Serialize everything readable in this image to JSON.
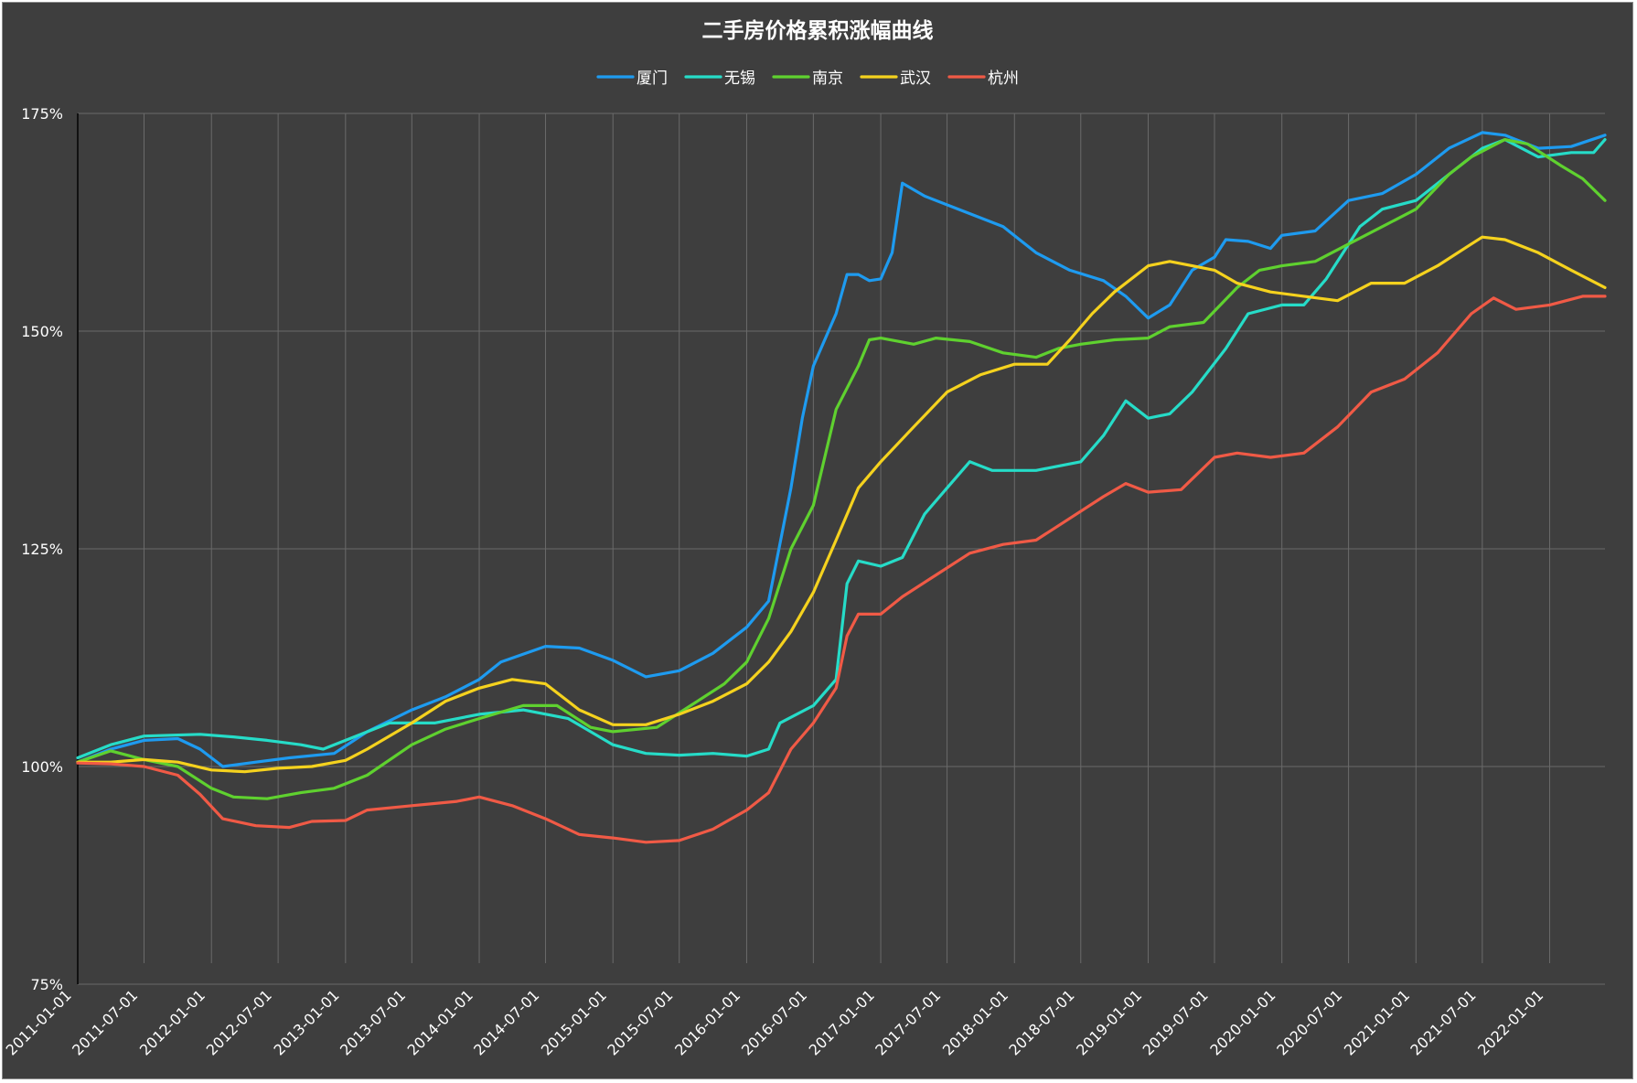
{
  "chart_data": {
    "type": "line",
    "title": "二手房价格累积涨幅曲线",
    "xlabel": "",
    "ylabel": "",
    "ylim": [
      75,
      175
    ],
    "y_ticks": [
      75,
      100,
      125,
      150,
      175
    ],
    "y_tick_suffix": "%",
    "x_range": [
      "2011-01-01",
      "2022-06-01"
    ],
    "x_ticks": [
      "2011-01-01",
      "2011-07-01",
      "2012-01-01",
      "2012-07-01",
      "2013-01-01",
      "2013-07-01",
      "2014-01-01",
      "2014-07-01",
      "2015-01-01",
      "2015-07-01",
      "2016-01-01",
      "2016-07-01",
      "2017-01-01",
      "2017-07-01",
      "2018-01-01",
      "2018-07-01",
      "2019-01-01",
      "2019-07-01",
      "2020-01-01",
      "2020-07-01",
      "2021-01-01",
      "2021-07-01",
      "2022-01-01"
    ],
    "grid": true,
    "legend_position": "top",
    "series": [
      {
        "name": "厦门",
        "color": "#1e9bf0",
        "points": [
          [
            "2011-01-01",
            100.5
          ],
          [
            "2011-04-01",
            102
          ],
          [
            "2011-07-01",
            103
          ],
          [
            "2011-10-01",
            103.2
          ],
          [
            "2011-12-01",
            102
          ],
          [
            "2012-02-01",
            100
          ],
          [
            "2012-05-01",
            100.5
          ],
          [
            "2012-08-01",
            101
          ],
          [
            "2012-12-01",
            101.5
          ],
          [
            "2013-03-01",
            104
          ],
          [
            "2013-07-01",
            106.5
          ],
          [
            "2013-10-01",
            108
          ],
          [
            "2014-01-01",
            110
          ],
          [
            "2014-03-01",
            112
          ],
          [
            "2014-07-01",
            113.8
          ],
          [
            "2014-10-01",
            113.6
          ],
          [
            "2015-01-01",
            112.2
          ],
          [
            "2015-04-01",
            110.3
          ],
          [
            "2015-07-01",
            111
          ],
          [
            "2015-10-01",
            113
          ],
          [
            "2016-01-01",
            116
          ],
          [
            "2016-03-01",
            119
          ],
          [
            "2016-05-01",
            132
          ],
          [
            "2016-06-01",
            140
          ],
          [
            "2016-07-01",
            146
          ],
          [
            "2016-09-01",
            152
          ],
          [
            "2016-10-01",
            156.5
          ],
          [
            "2016-11-01",
            156.5
          ],
          [
            "2016-12-01",
            155.8
          ],
          [
            "2017-01-01",
            156
          ],
          [
            "2017-02-01",
            159
          ],
          [
            "2017-03-01",
            167
          ],
          [
            "2017-05-01",
            165.5
          ],
          [
            "2017-08-01",
            164
          ],
          [
            "2017-12-01",
            162
          ],
          [
            "2018-03-01",
            159
          ],
          [
            "2018-06-01",
            157
          ],
          [
            "2018-09-01",
            155.8
          ],
          [
            "2018-11-01",
            154
          ],
          [
            "2019-01-01",
            151.5
          ],
          [
            "2019-03-01",
            153
          ],
          [
            "2019-05-01",
            157
          ],
          [
            "2019-07-01",
            158.5
          ],
          [
            "2019-08-01",
            160.5
          ],
          [
            "2019-10-01",
            160.3
          ],
          [
            "2019-12-01",
            159.5
          ],
          [
            "2020-01-01",
            161
          ],
          [
            "2020-04-01",
            161.5
          ],
          [
            "2020-07-01",
            165
          ],
          [
            "2020-10-01",
            165.8
          ],
          [
            "2021-01-01",
            168
          ],
          [
            "2021-04-01",
            171
          ],
          [
            "2021-07-01",
            172.8
          ],
          [
            "2021-09-01",
            172.5
          ],
          [
            "2021-12-01",
            171
          ],
          [
            "2022-03-01",
            171.2
          ],
          [
            "2022-06-01",
            172.5
          ]
        ]
      },
      {
        "name": "无锡",
        "color": "#26dcc8",
        "points": [
          [
            "2011-01-01",
            101
          ],
          [
            "2011-04-01",
            102.5
          ],
          [
            "2011-07-01",
            103.5
          ],
          [
            "2011-12-01",
            103.7
          ],
          [
            "2012-03-01",
            103.4
          ],
          [
            "2012-06-01",
            103
          ],
          [
            "2012-09-01",
            102.5
          ],
          [
            "2012-11-01",
            102
          ],
          [
            "2013-01-01",
            103
          ],
          [
            "2013-05-01",
            105
          ],
          [
            "2013-09-01",
            105
          ],
          [
            "2014-01-01",
            106
          ],
          [
            "2014-05-01",
            106.5
          ],
          [
            "2014-09-01",
            105.5
          ],
          [
            "2015-01-01",
            102.5
          ],
          [
            "2015-04-01",
            101.5
          ],
          [
            "2015-07-01",
            101.3
          ],
          [
            "2015-10-01",
            101.5
          ],
          [
            "2016-01-01",
            101.2
          ],
          [
            "2016-03-01",
            102
          ],
          [
            "2016-04-01",
            105
          ],
          [
            "2016-07-01",
            107
          ],
          [
            "2016-09-01",
            110
          ],
          [
            "2016-10-01",
            121
          ],
          [
            "2016-11-01",
            123.6
          ],
          [
            "2017-01-01",
            123
          ],
          [
            "2017-03-01",
            124
          ],
          [
            "2017-05-01",
            129
          ],
          [
            "2017-07-01",
            132
          ],
          [
            "2017-09-01",
            135
          ],
          [
            "2017-11-01",
            134
          ],
          [
            "2018-03-01",
            134
          ],
          [
            "2018-07-01",
            135
          ],
          [
            "2018-09-01",
            138
          ],
          [
            "2018-11-01",
            142
          ],
          [
            "2019-01-01",
            140
          ],
          [
            "2019-03-01",
            140.5
          ],
          [
            "2019-05-01",
            143
          ],
          [
            "2019-08-01",
            148
          ],
          [
            "2019-10-01",
            152
          ],
          [
            "2020-01-01",
            153
          ],
          [
            "2020-03-01",
            153
          ],
          [
            "2020-05-01",
            156
          ],
          [
            "2020-08-01",
            162
          ],
          [
            "2020-10-01",
            164
          ],
          [
            "2021-01-01",
            165
          ],
          [
            "2021-04-01",
            168
          ],
          [
            "2021-07-01",
            171
          ],
          [
            "2021-09-01",
            172
          ],
          [
            "2021-12-01",
            170
          ],
          [
            "2022-03-01",
            170.5
          ],
          [
            "2022-05-01",
            170.5
          ],
          [
            "2022-06-01",
            172
          ]
        ]
      },
      {
        "name": "南京",
        "color": "#5fd12f",
        "points": [
          [
            "2011-01-01",
            100.5
          ],
          [
            "2011-04-01",
            101.8
          ],
          [
            "2011-07-01",
            100.8
          ],
          [
            "2011-10-01",
            100
          ],
          [
            "2012-01-01",
            97.5
          ],
          [
            "2012-03-01",
            96.5
          ],
          [
            "2012-06-01",
            96.3
          ],
          [
            "2012-09-01",
            97
          ],
          [
            "2012-12-01",
            97.5
          ],
          [
            "2013-03-01",
            99
          ],
          [
            "2013-07-01",
            102.5
          ],
          [
            "2013-10-01",
            104.3
          ],
          [
            "2014-01-01",
            105.5
          ],
          [
            "2014-05-01",
            107
          ],
          [
            "2014-08-01",
            107
          ],
          [
            "2014-11-01",
            104.5
          ],
          [
            "2015-01-01",
            104
          ],
          [
            "2015-05-01",
            104.5
          ],
          [
            "2015-08-01",
            107
          ],
          [
            "2015-11-01",
            109.5
          ],
          [
            "2016-01-01",
            112
          ],
          [
            "2016-03-01",
            117
          ],
          [
            "2016-05-01",
            125
          ],
          [
            "2016-07-01",
            130
          ],
          [
            "2016-09-01",
            141
          ],
          [
            "2016-11-01",
            146
          ],
          [
            "2016-12-01",
            149
          ],
          [
            "2017-01-01",
            149.2
          ],
          [
            "2017-04-01",
            148.5
          ],
          [
            "2017-06-01",
            149.2
          ],
          [
            "2017-09-01",
            148.8
          ],
          [
            "2017-12-01",
            147.5
          ],
          [
            "2018-03-01",
            147
          ],
          [
            "2018-05-01",
            148
          ],
          [
            "2018-07-01",
            148.5
          ],
          [
            "2018-10-01",
            149
          ],
          [
            "2019-01-01",
            149.2
          ],
          [
            "2019-03-01",
            150.5
          ],
          [
            "2019-06-01",
            151
          ],
          [
            "2019-09-01",
            155
          ],
          [
            "2019-11-01",
            157
          ],
          [
            "2020-01-01",
            157.5
          ],
          [
            "2020-04-01",
            158
          ],
          [
            "2020-07-01",
            160
          ],
          [
            "2020-10-01",
            162
          ],
          [
            "2021-01-01",
            164
          ],
          [
            "2021-04-01",
            168
          ],
          [
            "2021-06-01",
            170
          ],
          [
            "2021-09-01",
            172
          ],
          [
            "2021-11-01",
            171.5
          ],
          [
            "2022-02-01",
            169
          ],
          [
            "2022-04-01",
            167.5
          ],
          [
            "2022-06-01",
            165
          ]
        ]
      },
      {
        "name": "武汉",
        "color": "#f5d21e",
        "points": [
          [
            "2011-01-01",
            100.5
          ],
          [
            "2011-04-01",
            100.5
          ],
          [
            "2011-07-01",
            100.8
          ],
          [
            "2011-10-01",
            100.5
          ],
          [
            "2012-01-01",
            99.6
          ],
          [
            "2012-04-01",
            99.4
          ],
          [
            "2012-07-01",
            99.8
          ],
          [
            "2012-10-01",
            100
          ],
          [
            "2013-01-01",
            100.7
          ],
          [
            "2013-03-01",
            102
          ],
          [
            "2013-07-01",
            105
          ],
          [
            "2013-10-01",
            107.5
          ],
          [
            "2014-01-01",
            109
          ],
          [
            "2014-04-01",
            110
          ],
          [
            "2014-07-01",
            109.5
          ],
          [
            "2014-10-01",
            106.5
          ],
          [
            "2015-01-01",
            104.8
          ],
          [
            "2015-04-01",
            104.8
          ],
          [
            "2015-07-01",
            106
          ],
          [
            "2015-10-01",
            107.5
          ],
          [
            "2016-01-01",
            109.5
          ],
          [
            "2016-03-01",
            112
          ],
          [
            "2016-05-01",
            115.5
          ],
          [
            "2016-07-01",
            120
          ],
          [
            "2016-09-01",
            126
          ],
          [
            "2016-11-01",
            132
          ],
          [
            "2017-01-01",
            135
          ],
          [
            "2017-04-01",
            139
          ],
          [
            "2017-07-01",
            143
          ],
          [
            "2017-10-01",
            145
          ],
          [
            "2018-01-01",
            146.2
          ],
          [
            "2018-04-01",
            146.2
          ],
          [
            "2018-06-01",
            149
          ],
          [
            "2018-08-01",
            152
          ],
          [
            "2018-10-01",
            154.5
          ],
          [
            "2019-01-01",
            157.5
          ],
          [
            "2019-03-01",
            158
          ],
          [
            "2019-05-01",
            157.5
          ],
          [
            "2019-07-01",
            157
          ],
          [
            "2019-09-01",
            155.5
          ],
          [
            "2019-12-01",
            154.5
          ],
          [
            "2020-03-01",
            154
          ],
          [
            "2020-06-01",
            153.5
          ],
          [
            "2020-09-01",
            155.5
          ],
          [
            "2020-12-01",
            155.5
          ],
          [
            "2021-03-01",
            157.5
          ],
          [
            "2021-06-01",
            160
          ],
          [
            "2021-07-01",
            160.8
          ],
          [
            "2021-09-01",
            160.5
          ],
          [
            "2021-12-01",
            159
          ],
          [
            "2022-03-01",
            157
          ],
          [
            "2022-06-01",
            155
          ]
        ]
      },
      {
        "name": "杭州",
        "color": "#f05a46",
        "points": [
          [
            "2011-01-01",
            100.4
          ],
          [
            "2011-04-01",
            100.3
          ],
          [
            "2011-07-01",
            100
          ],
          [
            "2011-10-01",
            99
          ],
          [
            "2011-12-01",
            96.8
          ],
          [
            "2012-02-01",
            94
          ],
          [
            "2012-05-01",
            93.2
          ],
          [
            "2012-08-01",
            93
          ],
          [
            "2012-10-01",
            93.7
          ],
          [
            "2013-01-01",
            93.8
          ],
          [
            "2013-03-01",
            95
          ],
          [
            "2013-07-01",
            95.5
          ],
          [
            "2013-11-01",
            96
          ],
          [
            "2014-01-01",
            96.5
          ],
          [
            "2014-04-01",
            95.5
          ],
          [
            "2014-07-01",
            94
          ],
          [
            "2014-10-01",
            92.2
          ],
          [
            "2015-01-01",
            91.8
          ],
          [
            "2015-04-01",
            91.3
          ],
          [
            "2015-07-01",
            91.5
          ],
          [
            "2015-10-01",
            92.8
          ],
          [
            "2016-01-01",
            95
          ],
          [
            "2016-03-01",
            97
          ],
          [
            "2016-05-01",
            102
          ],
          [
            "2016-07-01",
            105
          ],
          [
            "2016-09-01",
            109
          ],
          [
            "2016-10-01",
            115
          ],
          [
            "2016-11-01",
            117.5
          ],
          [
            "2017-01-01",
            117.5
          ],
          [
            "2017-03-01",
            119.5
          ],
          [
            "2017-06-01",
            122
          ],
          [
            "2017-09-01",
            124.5
          ],
          [
            "2017-12-01",
            125.5
          ],
          [
            "2018-03-01",
            126
          ],
          [
            "2018-06-01",
            128.5
          ],
          [
            "2018-09-01",
            131
          ],
          [
            "2018-11-01",
            132.5
          ],
          [
            "2019-01-01",
            131.5
          ],
          [
            "2019-04-01",
            131.8
          ],
          [
            "2019-07-01",
            135.5
          ],
          [
            "2019-09-01",
            136
          ],
          [
            "2019-12-01",
            135.5
          ],
          [
            "2020-03-01",
            136
          ],
          [
            "2020-06-01",
            139
          ],
          [
            "2020-09-01",
            143
          ],
          [
            "2020-12-01",
            144.5
          ],
          [
            "2021-03-01",
            147.5
          ],
          [
            "2021-06-01",
            152
          ],
          [
            "2021-08-01",
            153.8
          ],
          [
            "2021-10-01",
            152.5
          ],
          [
            "2022-01-01",
            153
          ],
          [
            "2022-04-01",
            154
          ],
          [
            "2022-06-01",
            154
          ]
        ]
      }
    ]
  }
}
